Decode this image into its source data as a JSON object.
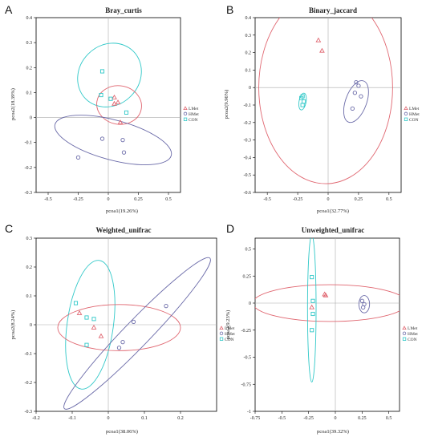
{
  "figure": {
    "colors": {
      "LMet": "#e06670",
      "HMet": "#6a6aa8",
      "CON": "#30c8c8"
    },
    "legend": [
      "LMet",
      "HMet",
      "CON"
    ],
    "panels_meta": [
      {
        "label": "A",
        "title": "Bray_curtis",
        "xlabel": "pcoa1(19.26%)",
        "ylabel": "pcoa2(18.39%)"
      },
      {
        "label": "B",
        "title": "Binary_jaccard",
        "xlabel": "pcoa1(32.77%)",
        "ylabel": "pcoa2(9.96%)"
      },
      {
        "label": "C",
        "title": "Weighted_unifrac",
        "xlabel": "pcoa1(38.06%)",
        "ylabel": "pcoa2(8.24%)"
      },
      {
        "label": "D",
        "title": "Unweighted_unifrac",
        "xlabel": "pcoa1(39.32%)",
        "ylabel": "pcoa2(9.23%)"
      }
    ]
  },
  "chart_data": [
    {
      "type": "scatter",
      "title": "Bray_curtis",
      "xlabel": "pcoa1(19.26%)",
      "ylabel": "pcoa2(18.39%)",
      "xlim": [
        -0.6,
        0.6
      ],
      "ylim": [
        -0.3,
        0.4
      ],
      "xticks": [
        -0.5,
        -0.25,
        0,
        0.25,
        0.5
      ],
      "xticklabels": [
        "-0.5",
        "-0.25",
        "0",
        "0.25",
        "0.5"
      ],
      "yticks": [
        -0.3,
        -0.2,
        -0.1,
        0,
        0.1,
        0.2,
        0.3,
        0.4
      ],
      "yticklabels": [
        "-0.3",
        "-0.2",
        "-0.1",
        "0",
        "0.1",
        "0.2",
        "0.3",
        "0.4"
      ],
      "legend": [
        "LMet",
        "HMet",
        "CON"
      ],
      "series": [
        {
          "name": "LMet",
          "marker": "triangle",
          "points": [
            [
              0.05,
              0.08
            ],
            [
              0.08,
              0.06
            ],
            [
              0.05,
              0.055
            ],
            [
              0.1,
              -0.02
            ]
          ]
        },
        {
          "name": "HMet",
          "marker": "circle",
          "points": [
            [
              -0.25,
              -0.16
            ],
            [
              -0.05,
              -0.085
            ],
            [
              0.12,
              -0.09
            ],
            [
              0.13,
              -0.14
            ]
          ]
        },
        {
          "name": "CON",
          "marker": "square",
          "points": [
            [
              -0.05,
              0.185
            ],
            [
              -0.06,
              0.09
            ],
            [
              0.02,
              0.075
            ],
            [
              0.15,
              0.02
            ]
          ]
        }
      ],
      "ellipses": [
        {
          "group": "CON",
          "cx": 0.01,
          "cy": 0.17,
          "rx": 0.28,
          "ry": 0.12,
          "angle": -45
        },
        {
          "group": "LMet",
          "cx": 0.09,
          "cy": 0.05,
          "rx": 0.16,
          "ry": 0.09,
          "angle": -80
        },
        {
          "group": "HMet",
          "cx": 0.04,
          "cy": -0.09,
          "rx": 0.5,
          "ry": 0.08,
          "angle": 15
        }
      ]
    },
    {
      "type": "scatter",
      "title": "Binary_jaccard",
      "xlabel": "pcoa1(32.77%)",
      "ylabel": "pcoa2(9.96%)",
      "xlim": [
        -0.6,
        0.6
      ],
      "ylim": [
        -0.6,
        0.4
      ],
      "xticks": [
        -0.5,
        -0.25,
        0,
        0.25,
        0.5
      ],
      "xticklabels": [
        "-0.5",
        "-0.25",
        "0",
        "0.25",
        "0.5"
      ],
      "yticks": [
        -0.6,
        -0.5,
        -0.4,
        -0.3,
        -0.2,
        -0.1,
        0,
        0.1,
        0.2,
        0.3,
        0.4
      ],
      "yticklabels": [
        "-0.6",
        "-0.5",
        "-0.4",
        "-0.3",
        "-0.2",
        "-0.1",
        "0",
        "0.1",
        "0.2",
        "0.3",
        "0.4"
      ],
      "legend": [
        "LMet",
        "HMet",
        "CON"
      ],
      "series": [
        {
          "name": "LMet",
          "marker": "triangle",
          "points": [
            [
              -0.08,
              0.27
            ],
            [
              -0.05,
              0.21
            ]
          ]
        },
        {
          "name": "HMet",
          "marker": "circle",
          "points": [
            [
              0.23,
              0.03
            ],
            [
              0.25,
              0.01
            ],
            [
              0.27,
              -0.05
            ],
            [
              0.22,
              -0.03
            ],
            [
              0.2,
              -0.12
            ]
          ]
        },
        {
          "name": "CON",
          "marker": "square",
          "points": [
            [
              -0.21,
              -0.05
            ],
            [
              -0.22,
              -0.06
            ],
            [
              -0.2,
              -0.08
            ],
            [
              -0.21,
              -0.1
            ]
          ]
        }
      ],
      "ellipses": [
        {
          "group": "LMet",
          "cx": -0.02,
          "cy": 0.0,
          "rx": 0.55,
          "ry": 0.55,
          "angle": 0
        },
        {
          "group": "HMet",
          "cx": 0.23,
          "cy": -0.08,
          "rx": 0.18,
          "ry": 0.06,
          "angle": -70
        },
        {
          "group": "CON",
          "cx": -0.21,
          "cy": -0.08,
          "rx": 0.07,
          "ry": 0.02,
          "angle": -80
        }
      ]
    },
    {
      "type": "scatter",
      "title": "Weighted_unifrac",
      "xlabel": "pcoa1(38.06%)",
      "ylabel": "pcoa2(8.24%)",
      "xlim": [
        -0.2,
        0.3
      ],
      "ylim": [
        -0.3,
        0.3
      ],
      "xticks": [
        -0.2,
        -0.1,
        0,
        0.1,
        0.2
      ],
      "xticklabels": [
        "-0.2",
        "-0.1",
        "0",
        "0.1",
        "0.2"
      ],
      "yticks": [
        -0.3,
        -0.2,
        -0.1,
        0,
        0.1,
        0.2,
        0.3
      ],
      "yticklabels": [
        "-0.3",
        "-0.2",
        "-0.1",
        "0",
        "0.1",
        "0.2",
        "0.3"
      ],
      "legend": [
        "LMet",
        "HMet",
        "CON"
      ],
      "series": [
        {
          "name": "LMet",
          "marker": "triangle",
          "points": [
            [
              -0.08,
              0.04
            ],
            [
              -0.04,
              -0.01
            ],
            [
              -0.02,
              -0.04
            ]
          ]
        },
        {
          "name": "HMet",
          "marker": "circle",
          "points": [
            [
              0.16,
              0.065
            ],
            [
              0.07,
              0.01
            ],
            [
              0.04,
              -0.06
            ],
            [
              0.03,
              -0.08
            ]
          ]
        },
        {
          "name": "CON",
          "marker": "square",
          "points": [
            [
              -0.09,
              0.075
            ],
            [
              -0.06,
              0.025
            ],
            [
              -0.04,
              0.02
            ],
            [
              -0.06,
              -0.07
            ]
          ]
        }
      ],
      "ellipses": [
        {
          "group": "CON",
          "cx": -0.05,
          "cy": 0.0,
          "rx": 0.18,
          "ry": 0.08,
          "angle": -82
        },
        {
          "group": "LMet",
          "cx": 0.03,
          "cy": -0.01,
          "rx": 0.17,
          "ry": 0.08,
          "angle": 0
        },
        {
          "group": "HMet",
          "cx": 0.08,
          "cy": -0.03,
          "rx": 0.29,
          "ry": 0.045,
          "angle": -46
        }
      ]
    },
    {
      "type": "scatter",
      "title": "Unweighted_unifrac",
      "xlabel": "pcoa1(39.32%)",
      "ylabel": "pcoa2(9.23%)",
      "xlim": [
        -0.75,
        0.6
      ],
      "ylim": [
        -1,
        0.6
      ],
      "xticks": [
        -0.75,
        -0.5,
        -0.25,
        0,
        0.25,
        0.5
      ],
      "xticklabels": [
        "-0.75",
        "-0.5",
        "-0.25",
        "0",
        "0.25",
        "0.5"
      ],
      "yticks": [
        -1,
        -0.75,
        -0.5,
        -0.25,
        0,
        0.25,
        0.5
      ],
      "yticklabels": [
        "-1",
        "-0.75",
        "-0.5",
        "-0.25",
        "0",
        "0.25",
        "0.5"
      ],
      "legend": [
        "LMet",
        "HMet",
        "CON"
      ],
      "series": [
        {
          "name": "LMet",
          "marker": "triangle",
          "points": [
            [
              -0.1,
              0.08
            ],
            [
              -0.09,
              0.07
            ],
            [
              -0.22,
              -0.04
            ]
          ]
        },
        {
          "name": "HMet",
          "marker": "circle",
          "points": [
            [
              0.25,
              0.02
            ],
            [
              0.27,
              -0.01
            ],
            [
              0.26,
              -0.04
            ]
          ]
        },
        {
          "name": "CON",
          "marker": "square",
          "points": [
            [
              -0.22,
              0.24
            ],
            [
              -0.21,
              0.02
            ],
            [
              -0.21,
              -0.1
            ],
            [
              -0.22,
              -0.25
            ]
          ]
        }
      ],
      "ellipses": [
        {
          "group": "LMet",
          "cx": -0.05,
          "cy": 0.0,
          "rx": 0.72,
          "ry": 0.17,
          "angle": 0
        },
        {
          "group": "CON",
          "cx": -0.22,
          "cy": -0.05,
          "rx": 0.04,
          "ry": 0.68,
          "angle": 0
        },
        {
          "group": "HMet",
          "cx": 0.27,
          "cy": -0.01,
          "rx": 0.05,
          "ry": 0.08,
          "angle": 0
        }
      ]
    }
  ]
}
